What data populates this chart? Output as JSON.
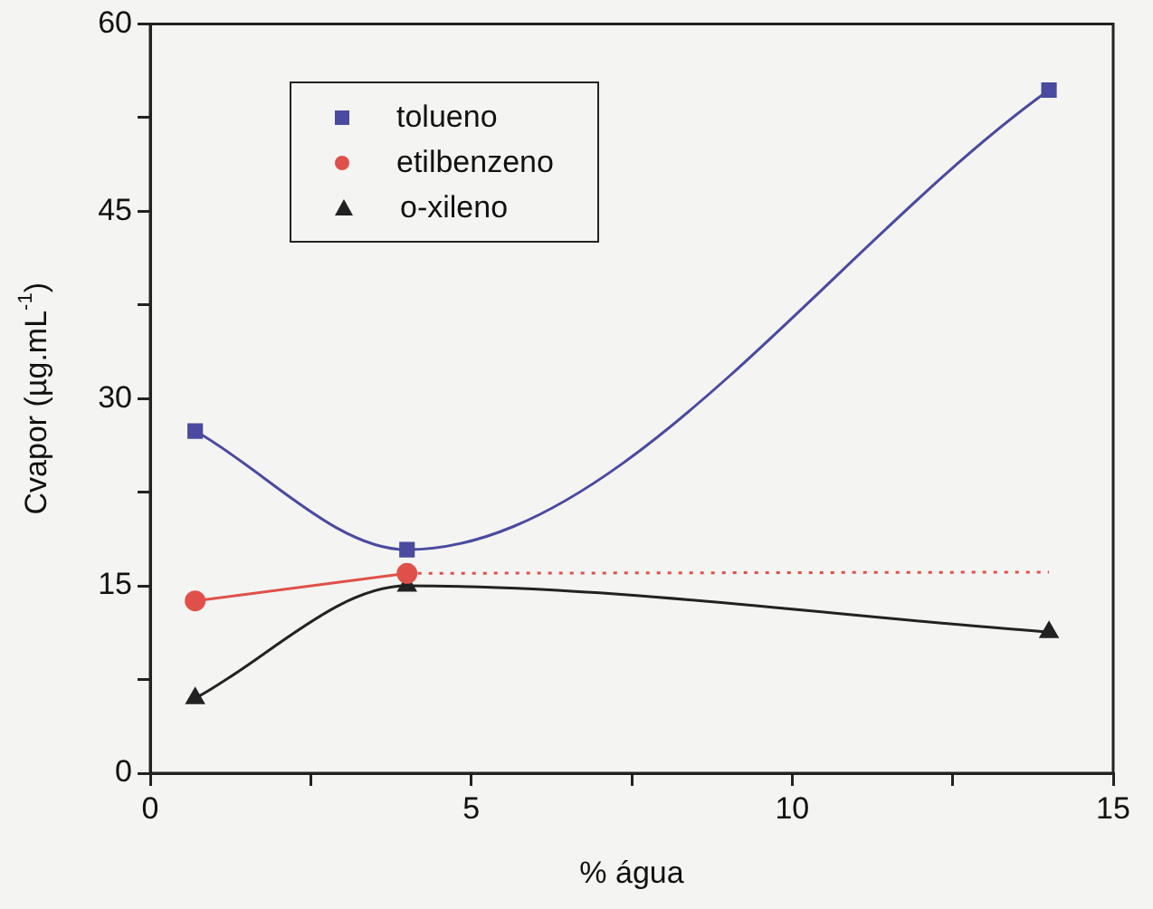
{
  "chart_data": {
    "type": "line",
    "xlabel": "% água",
    "ylabel": "Cvapor (µg.mL$^{-1}$)",
    "xlim": [
      0,
      15
    ],
    "xticks": [
      0,
      {
        "value": 2.5,
        "label": null
      },
      5,
      {
        "value": 7.5,
        "label": null
      },
      10,
      {
        "value": 12.5,
        "label": null
      },
      15
    ],
    "ylim": [
      0,
      60
    ],
    "yticks": [
      0,
      {
        "value": 7.5,
        "label": null
      },
      15,
      {
        "value": 22.5,
        "label": null
      },
      30,
      {
        "value": 37.5,
        "label": null
      },
      45,
      {
        "value": 52.5,
        "label": null
      },
      60
    ],
    "grid": false,
    "legend": "top left",
    "series": [
      {
        "name": "tolueno",
        "color": "#4a4aa0",
        "marker": "square",
        "x": [
          0.7,
          4,
          14
        ],
        "values": [
          27.4,
          17.9,
          54.7
        ]
      },
      {
        "name": "etilbenzeno",
        "color": "#e0504a",
        "marker": "circle",
        "x": [
          0.7,
          4
        ],
        "values": [
          13.8,
          16.0
        ]
      },
      {
        "color": "#e0504a",
        "marker": "none",
        "line_style": "dotted",
        "x": [
          4,
          14
        ],
        "values": [
          16.0,
          16.1
        ]
      },
      {
        "name": "o-xileno",
        "color": "#222222",
        "marker": "triangle",
        "x": [
          0.7,
          4,
          14
        ],
        "values": [
          6.0,
          15.0,
          11.3
        ]
      }
    ]
  }
}
